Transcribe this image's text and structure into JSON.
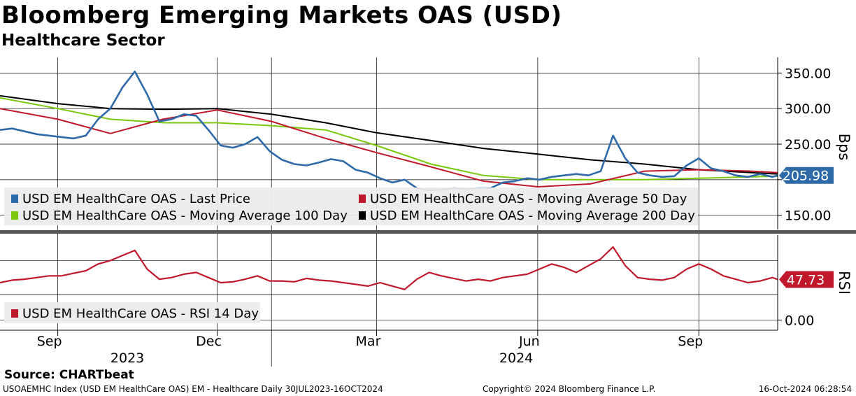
{
  "header": {
    "title": "Bloomberg Emerging Markets OAS (USD)",
    "subtitle": "Healthcare Sector"
  },
  "footer": {
    "source": "Source: CHARTbeat",
    "index_info": "USOAEMHC Index (USD EM HealthCare OAS) EM - Healthcare  Daily 30JUL2023-16OCT2024",
    "copyright": "Copyright© 2024 Bloomberg Finance L.P.",
    "timestamp": "16-Oct-2024 06:28:54"
  },
  "colors": {
    "last_price": "#2e6aa8",
    "ma50": "#c0192c",
    "ma100": "#7ac70c",
    "ma200": "#000000",
    "rsi": "#c0192c",
    "grid": "#000000",
    "legend_bg": "#ececec"
  },
  "chart_data": [
    {
      "type": "line",
      "panel": "price",
      "ylabel": "Bps",
      "ylim": [
        130,
        372
      ],
      "ytick_values": [
        150,
        200,
        250,
        300,
        350
      ],
      "yticks": [
        "150.00",
        "",
        "250.00",
        "300.00",
        "350.00"
      ],
      "last_value_label": "205.98",
      "x_start": "2023-07-30",
      "x_end": "2024-10-16",
      "legend_placement": "bottom-left",
      "series": [
        {
          "name": "USD EM HealthCare OAS - Last Price",
          "key": "last",
          "x": [
            "2023-07-30",
            "2023-08-06",
            "2023-08-13",
            "2023-08-20",
            "2023-08-27",
            "2023-09-03",
            "2023-09-10",
            "2023-09-17",
            "2023-09-24",
            "2023-10-01",
            "2023-10-08",
            "2023-10-15",
            "2023-10-22",
            "2023-10-29",
            "2023-11-05",
            "2023-11-12",
            "2023-11-19",
            "2023-11-26",
            "2023-12-03",
            "2023-12-10",
            "2023-12-17",
            "2023-12-24",
            "2023-12-31",
            "2024-01-07",
            "2024-01-14",
            "2024-01-21",
            "2024-01-28",
            "2024-02-04",
            "2024-02-11",
            "2024-02-18",
            "2024-02-25",
            "2024-03-03",
            "2024-03-10",
            "2024-03-17",
            "2024-03-24",
            "2024-03-31",
            "2024-04-07",
            "2024-04-14",
            "2024-04-21",
            "2024-04-28",
            "2024-05-05",
            "2024-05-12",
            "2024-05-19",
            "2024-05-26",
            "2024-06-02",
            "2024-06-09",
            "2024-06-16",
            "2024-06-23",
            "2024-06-30",
            "2024-07-07",
            "2024-07-14",
            "2024-07-21",
            "2024-07-28",
            "2024-08-04",
            "2024-08-11",
            "2024-08-18",
            "2024-08-25",
            "2024-09-01",
            "2024-09-08",
            "2024-09-15",
            "2024-09-22",
            "2024-09-29",
            "2024-10-06",
            "2024-10-13",
            "2024-10-16"
          ],
          "values": [
            270,
            272,
            268,
            264,
            262,
            260,
            258,
            262,
            285,
            300,
            330,
            352,
            320,
            282,
            285,
            292,
            290,
            270,
            248,
            245,
            250,
            260,
            240,
            228,
            222,
            220,
            224,
            229,
            226,
            214,
            210,
            202,
            196,
            200,
            188,
            185,
            186,
            188,
            187,
            188,
            188,
            196,
            198,
            202,
            200,
            204,
            206,
            208,
            206,
            212,
            262,
            230,
            210,
            206,
            204,
            205,
            220,
            230,
            216,
            212,
            206,
            204,
            208,
            204,
            206
          ]
        },
        {
          "name": "USD EM HealthCare OAS - Moving Average 50 Day",
          "key": "ma50",
          "x": [
            "2023-07-30",
            "2023-09-01",
            "2023-10-01",
            "2023-10-31",
            "2023-12-01",
            "2024-01-01",
            "2024-02-01",
            "2024-03-01",
            "2024-04-01",
            "2024-05-01",
            "2024-06-01",
            "2024-07-01",
            "2024-08-01",
            "2024-09-01",
            "2024-10-01",
            "2024-10-16"
          ],
          "values": [
            300,
            285,
            265,
            285,
            298,
            282,
            258,
            238,
            218,
            198,
            190,
            194,
            212,
            214,
            212,
            210
          ]
        },
        {
          "name": "USD EM HealthCare OAS - Moving Average 100 Day",
          "key": "ma100",
          "x": [
            "2023-07-30",
            "2023-09-01",
            "2023-10-01",
            "2023-11-01",
            "2023-12-01",
            "2024-01-01",
            "2024-02-01",
            "2024-03-01",
            "2024-04-01",
            "2024-05-01",
            "2024-06-01",
            "2024-07-01",
            "2024-08-01",
            "2024-09-01",
            "2024-10-01",
            "2024-10-16"
          ],
          "values": [
            315,
            300,
            285,
            280,
            280,
            276,
            270,
            248,
            222,
            206,
            200,
            200,
            200,
            202,
            204,
            205
          ]
        },
        {
          "name": "USD EM HealthCare OAS - Moving Average 200 Day",
          "key": "ma200",
          "x": [
            "2023-07-30",
            "2023-09-01",
            "2023-10-01",
            "2023-11-01",
            "2023-12-01",
            "2024-01-01",
            "2024-02-01",
            "2024-03-01",
            "2024-04-01",
            "2024-05-01",
            "2024-06-01",
            "2024-07-01",
            "2024-08-01",
            "2024-09-01",
            "2024-10-01",
            "2024-10-16"
          ],
          "values": [
            318,
            307,
            300,
            299,
            300,
            292,
            280,
            266,
            255,
            244,
            236,
            228,
            222,
            214,
            210,
            208
          ]
        }
      ]
    },
    {
      "type": "line",
      "panel": "rsi",
      "ylabel": "RSI",
      "ylim": [
        -12,
        100
      ],
      "ytick_values": [
        0
      ],
      "yticks": [
        "0.00"
      ],
      "last_value_label": "47.73",
      "x_start": "2023-07-30",
      "x_end": "2024-10-16",
      "legend_placement": "bottom-left",
      "series": [
        {
          "name": "USD EM HealthCare OAS - RSI 14 Day",
          "key": "rsi",
          "x": [
            "2023-07-30",
            "2023-08-06",
            "2023-08-13",
            "2023-08-20",
            "2023-08-27",
            "2023-09-03",
            "2023-09-10",
            "2023-09-17",
            "2023-09-24",
            "2023-10-01",
            "2023-10-08",
            "2023-10-15",
            "2023-10-22",
            "2023-10-29",
            "2023-11-05",
            "2023-11-12",
            "2023-11-19",
            "2023-11-26",
            "2023-12-03",
            "2023-12-10",
            "2023-12-17",
            "2023-12-24",
            "2023-12-31",
            "2024-01-07",
            "2024-01-14",
            "2024-01-21",
            "2024-01-28",
            "2024-02-04",
            "2024-02-11",
            "2024-02-18",
            "2024-02-25",
            "2024-03-03",
            "2024-03-10",
            "2024-03-17",
            "2024-03-24",
            "2024-03-31",
            "2024-04-07",
            "2024-04-14",
            "2024-04-21",
            "2024-04-28",
            "2024-05-05",
            "2024-05-12",
            "2024-05-19",
            "2024-05-26",
            "2024-06-02",
            "2024-06-09",
            "2024-06-16",
            "2024-06-23",
            "2024-06-30",
            "2024-07-07",
            "2024-07-14",
            "2024-07-21",
            "2024-07-28",
            "2024-08-04",
            "2024-08-11",
            "2024-08-18",
            "2024-08-25",
            "2024-09-01",
            "2024-09-08",
            "2024-09-15",
            "2024-09-22",
            "2024-09-29",
            "2024-10-06",
            "2024-10-13",
            "2024-10-16"
          ],
          "values": [
            44,
            47,
            48,
            50,
            52,
            52,
            55,
            58,
            66,
            70,
            76,
            82,
            60,
            48,
            50,
            54,
            56,
            50,
            44,
            45,
            48,
            52,
            46,
            46,
            45,
            49,
            47,
            46,
            44,
            42,
            40,
            44,
            40,
            36,
            48,
            56,
            52,
            49,
            46,
            48,
            46,
            50,
            52,
            54,
            60,
            66,
            62,
            56,
            64,
            72,
            86,
            64,
            50,
            48,
            47,
            50,
            60,
            66,
            60,
            52,
            48,
            44,
            46,
            50,
            47.73
          ]
        }
      ]
    }
  ],
  "x_axis": {
    "month_labels": [
      {
        "label": "Sep",
        "date": "2023-09-01"
      },
      {
        "label": "Dec",
        "date": "2023-12-01"
      },
      {
        "label": "Mar",
        "date": "2024-03-01"
      },
      {
        "label": "Jun",
        "date": "2024-06-01"
      },
      {
        "label": "Sep",
        "date": "2024-09-01"
      }
    ],
    "year_labels": [
      {
        "label": "2023",
        "from": "2023-07-30",
        "to": "2024-01-01"
      },
      {
        "label": "2024",
        "from": "2024-01-01",
        "to": "2024-10-16"
      }
    ],
    "year_divider": "2024-01-01"
  }
}
